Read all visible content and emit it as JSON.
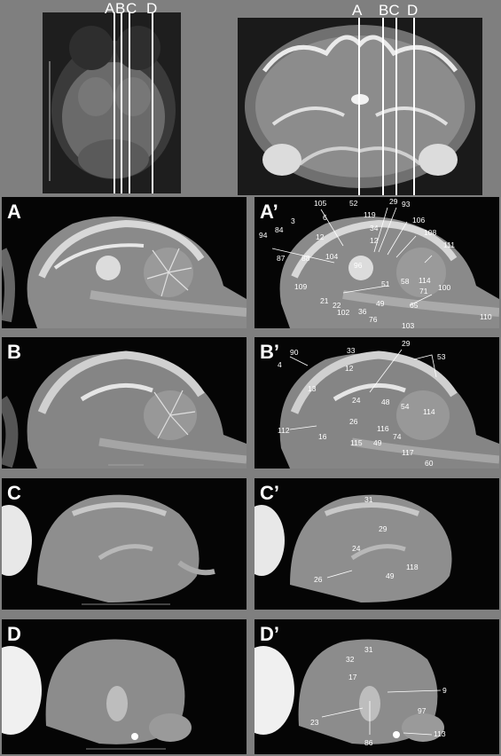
{
  "top_left": {
    "cut_labels": [
      "A",
      "B",
      "C",
      "D"
    ],
    "cut_header": "ABC D"
  },
  "top_right": {
    "cut_labels": [
      "A",
      "BC",
      "D"
    ]
  },
  "panels": {
    "A": {
      "letter": "A"
    },
    "A_prime": {
      "letter": "A’",
      "labels": [
        "105",
        "52",
        "29",
        "93",
        "6",
        "119",
        "106",
        "3",
        "34",
        "108",
        "84",
        "12",
        "12",
        "94",
        "104",
        "111",
        "87",
        "88",
        "96",
        "109",
        "51",
        "58",
        "114",
        "100",
        "71",
        "21",
        "22",
        "102",
        "36",
        "49",
        "76",
        "65",
        "103",
        "110"
      ]
    },
    "B": {
      "letter": "B"
    },
    "B_prime": {
      "letter": "B’",
      "labels": [
        "29",
        "90",
        "33",
        "53",
        "4",
        "12",
        "13",
        "24",
        "48",
        "54",
        "114",
        "26",
        "112",
        "116",
        "16",
        "115",
        "49",
        "74",
        "117",
        "60"
      ]
    },
    "C": {
      "letter": "C"
    },
    "C_prime": {
      "letter": "C’",
      "labels": [
        "31",
        "29",
        "24",
        "26",
        "49",
        "118"
      ]
    },
    "D": {
      "letter": "D"
    },
    "D_prime": {
      "letter": "D’",
      "labels": [
        "31",
        "32",
        "17",
        "9",
        "97",
        "23",
        "86",
        "113"
      ]
    }
  },
  "colors": {
    "background": "#7f7f7f",
    "tissue": "#9a9a9a",
    "label": "#ffffff"
  }
}
